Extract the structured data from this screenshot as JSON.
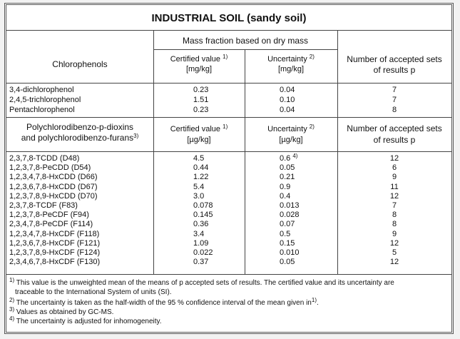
{
  "title": "INDUSTRIAL SOIL (sandy soil)",
  "mass_fraction_header": "Mass fraction based on dry mass",
  "sections": [
    {
      "headers": {
        "group": "Chlorophenols",
        "certified": "Certified value",
        "certified_note": "1)",
        "certified_unit": "[mg/kg]",
        "uncertainty": "Uncertainty",
        "uncertainty_note": "2)",
        "uncertainty_unit": "[mg/kg]",
        "sets_line1": "Number of accepted sets",
        "sets_line2": "of results p"
      },
      "rows": [
        {
          "name": "3,4-dichlorophenol",
          "certified": "0.23",
          "uncertainty": "0.04",
          "sets": "7"
        },
        {
          "name": "2,4,5-trichlorophenol",
          "certified": "1.51",
          "uncertainty": "0.10",
          "sets": "7"
        },
        {
          "name": "Pentachlorophenol",
          "certified": "0.23",
          "uncertainty": "0.04",
          "sets": "8"
        }
      ]
    },
    {
      "headers": {
        "group_line1": "Polychlorodibenzo-p-dioxins",
        "group_line2": "and polychlorodibenzo-furans",
        "group_note": "3)",
        "certified": "Certified value",
        "certified_note": "1)",
        "certified_unit": "[µg/kg]",
        "uncertainty": "Uncertainty",
        "uncertainty_note": "2)",
        "uncertainty_unit": "[µg/kg]",
        "sets_line1": "Number of accepted sets",
        "sets_line2": "of results p"
      },
      "rows": [
        {
          "name": "2,3,7,8-TCDD (D48)",
          "certified": "4.5",
          "uncertainty": "0.6",
          "uncertainty_note": "4)",
          "sets": "12"
        },
        {
          "name": "1,2,3,7,8-PeCDD (D54)",
          "certified": "0.44",
          "uncertainty": "0.05",
          "sets": "6"
        },
        {
          "name": "1,2,3,4,7,8-HxCDD (D66)",
          "certified": "1.22",
          "uncertainty": "0.21",
          "sets": "9"
        },
        {
          "name": "1,2,3,6,7,8-HxCDD (D67)",
          "certified": "5.4",
          "uncertainty": "0.9",
          "sets": "11"
        },
        {
          "name": "1,2,3,7,8,9-HxCDD (D70)",
          "certified": "3.0",
          "uncertainty": "0.4",
          "sets": "12"
        },
        {
          "name": "2,3,7,8-TCDF (F83)",
          "certified": "0.078",
          "uncertainty": "0.013",
          "sets": "7"
        },
        {
          "name": "1,2,3,7,8-PeCDF (F94)",
          "certified": "0.145",
          "uncertainty": "0.028",
          "sets": "8"
        },
        {
          "name": "2,3,4,7,8-PeCDF (F114)",
          "certified": "0.36",
          "uncertainty": "0.07",
          "sets": "8"
        },
        {
          "name": "1,2,3,4,7,8-HxCDF (F118)",
          "certified": "3.4",
          "uncertainty": "0.5",
          "sets": "9"
        },
        {
          "name": "1,2,3,6,7,8-HxCDF (F121)",
          "certified": "1.09",
          "uncertainty": "0.15",
          "sets": "12"
        },
        {
          "name": "1,2,3,7,8,9-HxCDF (F124)",
          "certified": "0.022",
          "uncertainty": "0.010",
          "sets": "5"
        },
        {
          "name": "2,3,4,6,7,8-HxCDF (F130)",
          "certified": "0.37",
          "uncertainty": "0.05",
          "sets": "12"
        }
      ]
    }
  ],
  "footnotes": [
    {
      "mark": "1)",
      "text": "This value is the unweighted mean of the means of p accepted sets of results. The certified value and its uncertainty are",
      "text2": "traceable to the International System of units (SI)."
    },
    {
      "mark": "2)",
      "text": "The uncertainty is taken as the half-width of the 95 % confidence interval of the mean given in",
      "ref": "1)",
      "tail": "."
    },
    {
      "mark": "3)",
      "text": "Values as obtained by GC-MS."
    },
    {
      "mark": "4)",
      "text": "The uncertainty is adjusted for inhomogeneity."
    }
  ]
}
